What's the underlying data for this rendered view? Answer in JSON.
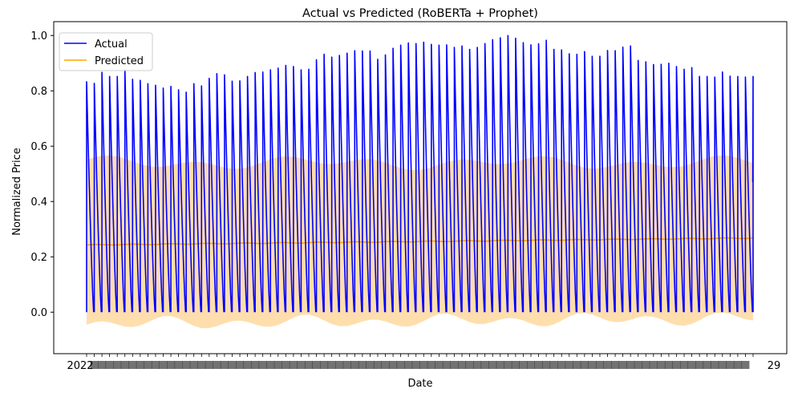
{
  "chart_data": {
    "type": "line",
    "title": "Actual vs Predicted (RoBERTa + Prophet)",
    "xlabel": "Date",
    "ylabel": "Normalized Price",
    "ylim": [
      -0.15,
      1.05
    ],
    "yticks": [
      0.0,
      0.2,
      0.4,
      0.6,
      0.8,
      1.0
    ],
    "ytick_labels": [
      "0.0",
      "0.2",
      "0.4",
      "0.6",
      "0.8",
      "1.0"
    ],
    "grid": false,
    "legend_position": "upper left",
    "x_tick_note": "overlapping date tick labels (unreadable); first starts with 2022, last ends with 29",
    "x_first_label": "2022",
    "x_last_label": "29",
    "cycle_count": 88,
    "series": [
      {
        "name": "Actual",
        "color": "#0000ff",
        "peaks": [
          0.833,
          0.827,
          0.867,
          0.852,
          0.852,
          0.876,
          0.842,
          0.838,
          0.826,
          0.82,
          0.81,
          0.816,
          0.804,
          0.795,
          0.826,
          0.818,
          0.845,
          0.862,
          0.858,
          0.835,
          0.836,
          0.852,
          0.866,
          0.868,
          0.876,
          0.882,
          0.892,
          0.888,
          0.876,
          0.878,
          0.912,
          0.932,
          0.922,
          0.928,
          0.936,
          0.945,
          0.944,
          0.944,
          0.914,
          0.93,
          0.954,
          0.965,
          0.973,
          0.971,
          0.976,
          0.968,
          0.965,
          0.966,
          0.957,
          0.962,
          0.95,
          0.957,
          0.971,
          0.985,
          0.992,
          1.0,
          0.99,
          0.974,
          0.966,
          0.97,
          0.983,
          0.95,
          0.948,
          0.934,
          0.932,
          0.942,
          0.925,
          0.925,
          0.946,
          0.945,
          0.958,
          0.962,
          0.91,
          0.905,
          0.895,
          0.896,
          0.9,
          0.888,
          0.878,
          0.884,
          0.852,
          0.852,
          0.85,
          0.868,
          0.853,
          0.852,
          0.85,
          0.852
        ],
        "trough": 0.0,
        "final_value": 0.47
      },
      {
        "name": "Predicted",
        "color": "#ffa500",
        "start": 0.243,
        "end": 0.268
      }
    ],
    "confidence_band": {
      "color": "#ffdead",
      "upper_mean": 0.54,
      "lower_mean": -0.03
    }
  }
}
